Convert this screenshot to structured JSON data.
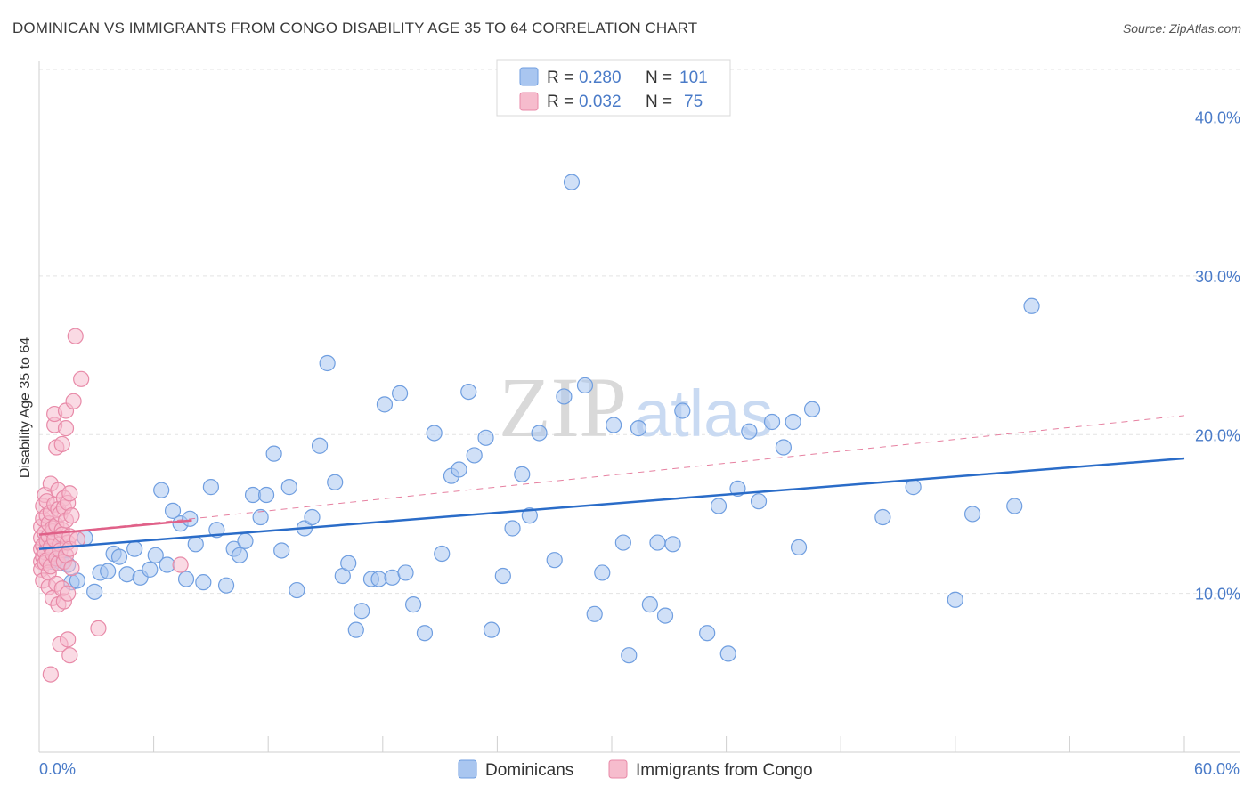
{
  "title": "DOMINICAN VS IMMIGRANTS FROM CONGO DISABILITY AGE 35 TO 64 CORRELATION CHART",
  "source": "Source: ZipAtlas.com",
  "watermark": {
    "zip": "ZIP",
    "atlas": "atlas"
  },
  "chart_data": {
    "type": "scatter",
    "title": "DOMINICAN VS IMMIGRANTS FROM CONGO DISABILITY AGE 35 TO 64 CORRELATION CHART",
    "ylabel": "Disability Age 35 to 64",
    "xlabel": "",
    "xlim": [
      0,
      60
    ],
    "ylim": [
      0,
      43
    ],
    "x_tick_labels": {
      "min": "0.0%",
      "max": "60.0%"
    },
    "y_ticks": [
      10,
      20,
      30,
      40
    ],
    "y_tick_labels": [
      "10.0%",
      "20.0%",
      "30.0%",
      "40.0%"
    ],
    "legend": {
      "position": "top-center",
      "entries": [
        {
          "r_label": "R =",
          "r_value": "0.280",
          "n_label": "N =",
          "n_value": "101"
        },
        {
          "r_label": "R =",
          "r_value": "0.032",
          "n_label": "N =",
          "n_value": "75"
        }
      ]
    },
    "series": [
      {
        "name": "Dominicans",
        "color": "#6f9ee0",
        "fill": "#a9c6f0",
        "line_color": "#2a6cc8",
        "trend": {
          "x": [
            0,
            60
          ],
          "y": [
            12.8,
            18.5
          ],
          "style": "solid"
        },
        "points": [
          [
            0.4,
            13.5
          ],
          [
            0.6,
            12.0
          ],
          [
            0.8,
            12.8
          ],
          [
            1.0,
            12.2
          ],
          [
            1.2,
            11.9
          ],
          [
            1.5,
            11.8
          ],
          [
            1.7,
            10.7
          ],
          [
            2.0,
            10.8
          ],
          [
            2.4,
            13.5
          ],
          [
            2.9,
            10.1
          ],
          [
            3.2,
            11.3
          ],
          [
            3.6,
            11.4
          ],
          [
            3.9,
            12.5
          ],
          [
            4.2,
            12.3
          ],
          [
            4.6,
            11.2
          ],
          [
            5.0,
            12.8
          ],
          [
            5.3,
            11.0
          ],
          [
            5.8,
            11.5
          ],
          [
            6.1,
            12.4
          ],
          [
            6.4,
            16.5
          ],
          [
            6.7,
            11.8
          ],
          [
            7.0,
            15.2
          ],
          [
            7.4,
            14.4
          ],
          [
            7.7,
            10.9
          ],
          [
            7.9,
            14.7
          ],
          [
            8.2,
            13.1
          ],
          [
            8.6,
            10.7
          ],
          [
            9.0,
            16.7
          ],
          [
            9.3,
            14.0
          ],
          [
            9.8,
            10.5
          ],
          [
            10.2,
            12.8
          ],
          [
            10.5,
            12.4
          ],
          [
            10.8,
            13.3
          ],
          [
            11.2,
            16.2
          ],
          [
            11.6,
            14.8
          ],
          [
            11.9,
            16.2
          ],
          [
            12.3,
            18.8
          ],
          [
            12.7,
            12.7
          ],
          [
            13.1,
            16.7
          ],
          [
            13.5,
            10.2
          ],
          [
            13.9,
            14.1
          ],
          [
            14.3,
            14.8
          ],
          [
            14.7,
            19.3
          ],
          [
            15.1,
            24.5
          ],
          [
            15.5,
            17.0
          ],
          [
            15.9,
            11.1
          ],
          [
            16.2,
            11.9
          ],
          [
            16.6,
            7.7
          ],
          [
            16.9,
            8.9
          ],
          [
            17.4,
            10.9
          ],
          [
            17.8,
            10.9
          ],
          [
            18.1,
            21.9
          ],
          [
            18.5,
            11.0
          ],
          [
            18.9,
            22.6
          ],
          [
            19.2,
            11.3
          ],
          [
            19.6,
            9.3
          ],
          [
            20.2,
            7.5
          ],
          [
            20.7,
            20.1
          ],
          [
            21.1,
            12.5
          ],
          [
            21.6,
            17.4
          ],
          [
            22.0,
            17.8
          ],
          [
            22.5,
            22.7
          ],
          [
            22.8,
            18.7
          ],
          [
            23.4,
            19.8
          ],
          [
            23.7,
            7.7
          ],
          [
            24.3,
            11.1
          ],
          [
            24.8,
            14.1
          ],
          [
            25.3,
            17.5
          ],
          [
            25.7,
            14.9
          ],
          [
            26.2,
            20.1
          ],
          [
            27.0,
            12.1
          ],
          [
            27.5,
            22.4
          ],
          [
            27.9,
            35.9
          ],
          [
            28.6,
            23.1
          ],
          [
            29.1,
            8.7
          ],
          [
            29.5,
            11.3
          ],
          [
            30.1,
            20.6
          ],
          [
            30.6,
            13.2
          ],
          [
            30.9,
            6.1
          ],
          [
            31.4,
            20.4
          ],
          [
            32.0,
            9.3
          ],
          [
            32.4,
            13.2
          ],
          [
            32.8,
            8.6
          ],
          [
            33.2,
            13.1
          ],
          [
            33.7,
            21.5
          ],
          [
            35.0,
            7.5
          ],
          [
            35.6,
            15.5
          ],
          [
            36.1,
            6.2
          ],
          [
            36.6,
            16.6
          ],
          [
            37.2,
            20.2
          ],
          [
            37.7,
            15.8
          ],
          [
            38.4,
            20.8
          ],
          [
            39.0,
            19.2
          ],
          [
            39.5,
            20.8
          ],
          [
            39.8,
            12.9
          ],
          [
            40.5,
            21.6
          ],
          [
            44.2,
            14.8
          ],
          [
            45.8,
            16.7
          ],
          [
            48.0,
            9.6
          ],
          [
            48.9,
            15.0
          ],
          [
            51.1,
            15.5
          ],
          [
            52.0,
            28.1
          ]
        ]
      },
      {
        "name": "Immigrants from Congo",
        "color": "#e88aa8",
        "fill": "#f6bccd",
        "line_color": "#e06088",
        "trend": {
          "x": [
            0,
            8
          ],
          "y": [
            13.7,
            14.6
          ],
          "style": "solid"
        },
        "trend_extended": {
          "x": [
            0,
            60
          ],
          "y": [
            13.7,
            21.2
          ],
          "style": "dashed"
        },
        "points": [
          [
            0.1,
            12.0
          ],
          [
            0.1,
            12.8
          ],
          [
            0.1,
            13.5
          ],
          [
            0.1,
            14.2
          ],
          [
            0.1,
            11.5
          ],
          [
            0.2,
            13.0
          ],
          [
            0.2,
            12.3
          ],
          [
            0.2,
            14.7
          ],
          [
            0.2,
            15.5
          ],
          [
            0.2,
            10.8
          ],
          [
            0.3,
            13.8
          ],
          [
            0.3,
            12.6
          ],
          [
            0.3,
            16.2
          ],
          [
            0.3,
            11.9
          ],
          [
            0.4,
            14.9
          ],
          [
            0.4,
            13.3
          ],
          [
            0.4,
            12.1
          ],
          [
            0.4,
            15.8
          ],
          [
            0.5,
            11.3
          ],
          [
            0.5,
            13.6
          ],
          [
            0.5,
            14.4
          ],
          [
            0.5,
            10.4
          ],
          [
            0.6,
            12.9
          ],
          [
            0.6,
            15.1
          ],
          [
            0.6,
            16.9
          ],
          [
            0.6,
            11.7
          ],
          [
            0.7,
            13.9
          ],
          [
            0.7,
            12.5
          ],
          [
            0.7,
            14.1
          ],
          [
            0.7,
            9.7
          ],
          [
            0.8,
            20.6
          ],
          [
            0.8,
            21.3
          ],
          [
            0.8,
            15.6
          ],
          [
            0.8,
            13.4
          ],
          [
            0.9,
            12.2
          ],
          [
            0.9,
            10.6
          ],
          [
            0.9,
            19.2
          ],
          [
            0.9,
            14.3
          ],
          [
            1.0,
            15.3
          ],
          [
            1.0,
            16.5
          ],
          [
            1.0,
            11.9
          ],
          [
            1.0,
            9.3
          ],
          [
            1.1,
            13.1
          ],
          [
            1.1,
            12.7
          ],
          [
            1.1,
            15.0
          ],
          [
            1.1,
            6.8
          ],
          [
            1.2,
            14.0
          ],
          [
            1.2,
            13.7
          ],
          [
            1.2,
            19.4
          ],
          [
            1.2,
            10.3
          ],
          [
            1.3,
            12.0
          ],
          [
            1.3,
            16.0
          ],
          [
            1.3,
            15.4
          ],
          [
            1.3,
            9.5
          ],
          [
            1.4,
            20.4
          ],
          [
            1.4,
            21.5
          ],
          [
            1.4,
            14.6
          ],
          [
            1.4,
            12.4
          ],
          [
            1.5,
            13.2
          ],
          [
            1.5,
            10.0
          ],
          [
            1.5,
            15.7
          ],
          [
            1.5,
            7.1
          ],
          [
            1.6,
            16.3
          ],
          [
            1.6,
            13.6
          ],
          [
            1.6,
            12.8
          ],
          [
            1.7,
            11.6
          ],
          [
            1.7,
            14.9
          ],
          [
            1.8,
            22.1
          ],
          [
            1.9,
            26.2
          ],
          [
            0.6,
            4.9
          ],
          [
            2.0,
            13.4
          ],
          [
            1.6,
            6.1
          ],
          [
            2.2,
            23.5
          ],
          [
            3.1,
            7.8
          ],
          [
            7.4,
            11.8
          ]
        ]
      }
    ]
  }
}
